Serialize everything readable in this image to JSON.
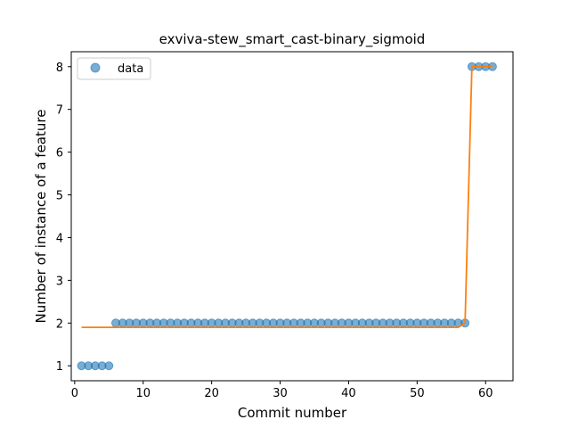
{
  "chart_data": {
    "type": "scatter",
    "title": "exviva-stew_smart_cast-binary_sigmoid",
    "xlabel": "Commit number",
    "ylabel": "Number of instance of a feature",
    "xlim": [
      -0.5,
      64.0
    ],
    "ylim": [
      0.65,
      8.35
    ],
    "x_ticks": [
      0,
      10,
      20,
      30,
      40,
      50,
      60
    ],
    "y_ticks": [
      1,
      2,
      3,
      4,
      5,
      6,
      7,
      8
    ],
    "grid": false,
    "legend_position": "top-left",
    "series": [
      {
        "name": "data",
        "kind": "scatter",
        "color": "#1f77b4",
        "x": [
          1,
          2,
          3,
          4,
          5,
          6,
          7,
          8,
          9,
          10,
          11,
          12,
          13,
          14,
          15,
          16,
          17,
          18,
          19,
          20,
          21,
          22,
          23,
          24,
          25,
          26,
          27,
          28,
          29,
          30,
          31,
          32,
          33,
          34,
          35,
          36,
          37,
          38,
          39,
          40,
          41,
          42,
          43,
          44,
          45,
          46,
          47,
          48,
          49,
          50,
          51,
          52,
          53,
          54,
          55,
          56,
          57,
          58,
          59,
          60,
          61
        ],
        "y": [
          1,
          1,
          1,
          1,
          1,
          2,
          2,
          2,
          2,
          2,
          2,
          2,
          2,
          2,
          2,
          2,
          2,
          2,
          2,
          2,
          2,
          2,
          2,
          2,
          2,
          2,
          2,
          2,
          2,
          2,
          2,
          2,
          2,
          2,
          2,
          2,
          2,
          2,
          2,
          2,
          2,
          2,
          2,
          2,
          2,
          2,
          2,
          2,
          2,
          2,
          2,
          2,
          2,
          2,
          2,
          2,
          2,
          8,
          8,
          8,
          8
        ]
      },
      {
        "kind": "line",
        "color": "#ff7f0e",
        "x": [
          1,
          56,
          57,
          58,
          61
        ],
        "y": [
          1.9,
          1.9,
          2.0,
          8.0,
          8.0
        ]
      }
    ]
  }
}
